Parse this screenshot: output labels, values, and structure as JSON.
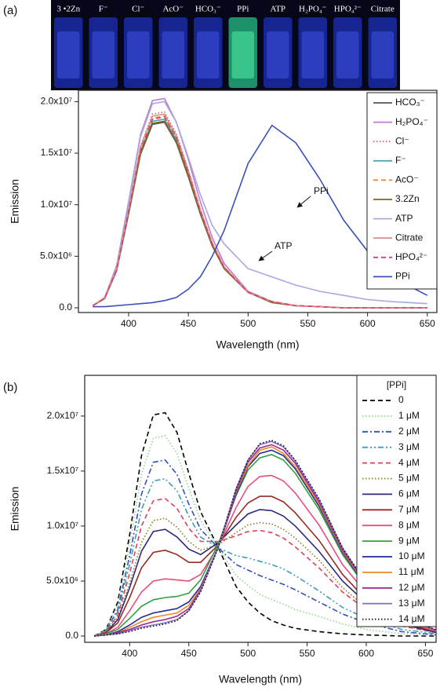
{
  "photo": {
    "labels": [
      "3 •2Zn",
      "F⁻",
      "Cl⁻",
      "AcO⁻",
      "HCO₃⁻",
      "PPi",
      "ATP",
      "H₂PO₄⁻",
      "HPO₄²⁻",
      "Citrate"
    ]
  },
  "chart_data": [
    {
      "type": "line",
      "panel": "(a)",
      "x_label": "Wavelength (nm)",
      "y_label": "Emission",
      "xlim": [
        358,
        658
      ],
      "ylim": [
        -460000,
        21100000
      ],
      "xticks": [
        400,
        450,
        500,
        550,
        600,
        650
      ],
      "yticks": [
        {
          "value": 0,
          "label": "0.0"
        },
        {
          "value": 5000000,
          "label": "5.0x10⁶"
        },
        {
          "value": 10000000,
          "label": "1.0x10⁷"
        },
        {
          "value": 15000000,
          "label": "1.5x10⁷"
        },
        {
          "value": 20000000,
          "label": "2.0x10⁷"
        }
      ],
      "legend": "upper right",
      "annotations": [
        "PPi",
        "ATP"
      ],
      "x": [
        370,
        380,
        390,
        400,
        410,
        420,
        430,
        440,
        450,
        460,
        470,
        480,
        500,
        520,
        540,
        560,
        580,
        600,
        620,
        650
      ],
      "series": [
        {
          "name": "HCO₃⁻",
          "color": "#555555",
          "style": "solid",
          "values": [
            200000.0,
            900000.0,
            3600000.0,
            9100000.0,
            14900000.0,
            17800000.0,
            18000000.0,
            16000000.0,
            12700000.0,
            9100000.0,
            6000000.0,
            3800000.0,
            1500000.0,
            500000.0,
            200000.0,
            100000.0,
            0,
            0,
            0,
            0
          ]
        },
        {
          "name": "H₂PO₄⁻",
          "color": "#c07ad0",
          "style": "solid",
          "values": [
            200000.0,
            1000000.0,
            4100000.0,
            10300000.0,
            16800000.0,
            20100000.0,
            20300000.0,
            18000000.0,
            14400000.0,
            10300000.0,
            6800000.0,
            4300000.0,
            1600000.0,
            600000.0,
            200000.0,
            100000.0,
            0,
            0,
            0,
            0
          ]
        },
        {
          "name": "Cl⁻",
          "color": "#b07060",
          "style": "dotted",
          "values": [
            200000.0,
            1000000.0,
            3800000.0,
            9600000.0,
            15700000.0,
            18800000.0,
            19000000.0,
            16900000.0,
            13400000.0,
            9600000.0,
            6300000.0,
            4000000.0,
            1500000.0,
            600000.0,
            200000.0,
            100000.0,
            0,
            0,
            0,
            0
          ]
        },
        {
          "name": "F⁻",
          "color": "#4fa8b8",
          "style": "solid",
          "values": [
            200000.0,
            900000.0,
            3700000.0,
            9300000.0,
            15200000.0,
            18100000.0,
            18300000.0,
            16300000.0,
            13000000.0,
            9300000.0,
            6100000.0,
            3900000.0,
            1500000.0,
            600000.0,
            200000.0,
            100000.0,
            0,
            0,
            0,
            0
          ]
        },
        {
          "name": "AcO⁻",
          "color": "#f08030",
          "style": "dashed",
          "values": [
            200000.0,
            900000.0,
            3800000.0,
            9400000.0,
            15400000.0,
            18400000.0,
            18600000.0,
            16500000.0,
            13200000.0,
            9400000.0,
            6200000.0,
            3900000.0,
            1500000.0,
            600000.0,
            200000.0,
            100000.0,
            0,
            0,
            0,
            0
          ]
        },
        {
          "name": "3.2Zn",
          "color": "#7a6a20",
          "style": "solid",
          "values": [
            200000.0,
            900000.0,
            3700000.0,
            9200000.0,
            15000000.0,
            17900000.0,
            18100000.0,
            16100000.0,
            12800000.0,
            9200000.0,
            6000000.0,
            3800000.0,
            1500000.0,
            500000.0,
            200000.0,
            100000.0,
            0,
            0,
            0,
            0
          ]
        },
        {
          "name": "ATP",
          "color": "#a8a8e0",
          "style": "solid",
          "values": [
            200000.0,
            1000000.0,
            4000000.0,
            10100000.0,
            16600000.0,
            19800000.0,
            20000000.0,
            18000000.0,
            14600000.0,
            11000000.0,
            8000000.0,
            6200000.0,
            3800000.0,
            3000000.0,
            2200000.0,
            1600000.0,
            1200000.0,
            800000.0,
            600000.0,
            400000.0
          ]
        },
        {
          "name": "Citrate",
          "color": "#d89090",
          "style": "solid",
          "values": [
            200000.0,
            1000000.0,
            3800000.0,
            9500000.0,
            15600000.0,
            18600000.0,
            18800000.0,
            16700000.0,
            13300000.0,
            9500000.0,
            6300000.0,
            4000000.0,
            1500000.0,
            600000.0,
            200000.0,
            100000.0,
            0,
            0,
            0,
            0
          ]
        },
        {
          "name": "HPO₄²⁻",
          "color": "#e04070",
          "style": "dashed",
          "values": [
            200000.0,
            900000.0,
            3700000.0,
            9400000.0,
            15300000.0,
            18300000.0,
            18500000.0,
            16500000.0,
            13100000.0,
            9400000.0,
            6200000.0,
            3900000.0,
            1500000.0,
            600000.0,
            200000.0,
            100000.0,
            0,
            0,
            0,
            0
          ]
        },
        {
          "name": "PPi",
          "color": "#3a50b8",
          "style": "solid",
          "values": [
            100000.0,
            100000.0,
            200000.0,
            300000.0,
            400000.0,
            500000.0,
            700000.0,
            1000000.0,
            1800000.0,
            3000000.0,
            5000000.0,
            7500000.0,
            14000000.0,
            17700000.0,
            16000000.0,
            12500000.0,
            8500000.0,
            5500000.0,
            3000000.0,
            1200000.0
          ]
        }
      ]
    },
    {
      "type": "line",
      "panel": "(b)",
      "x_label": "Wavelength (nm)",
      "y_label": "Emission",
      "xlim": [
        362,
        659
      ],
      "ylim": [
        -570000,
        23700000
      ],
      "xticks": [
        400,
        450,
        500,
        550,
        600,
        650
      ],
      "yticks": [
        {
          "value": 0,
          "label": "0.0"
        },
        {
          "value": 5000000,
          "label": "5.0x10⁶"
        },
        {
          "value": 10000000,
          "label": "1.0x10⁷"
        },
        {
          "value": 15000000,
          "label": "1.5x10⁷"
        },
        {
          "value": 20000000,
          "label": "2.0x10⁷"
        }
      ],
      "legend": "upper right",
      "legend_title": "[PPi]",
      "x": [
        370,
        380,
        390,
        400,
        410,
        420,
        430,
        440,
        450,
        460,
        475,
        490,
        500,
        510,
        520,
        530,
        540,
        560,
        580,
        600,
        630,
        660
      ],
      "series": [
        {
          "name": "0",
          "color": "#000000",
          "style": "dashed",
          "values": [
            0,
            600000.0,
            3100000.0,
            9200000.0,
            16400000.0,
            20100000.0,
            20300000.0,
            18500000.0,
            14800000.0,
            11300000.0,
            8000000.0,
            4500000.0,
            3100000.0,
            2100000.0,
            1400000.0,
            1000000.0,
            700000.0,
            400000.0,
            200000.0,
            100000.0,
            0,
            0
          ]
        },
        {
          "name": "1 μM",
          "color": "#8ed88e",
          "style": "dotted",
          "values": [
            0,
            600000.0,
            2800000.0,
            8300000.0,
            14700000.0,
            18000000.0,
            18200000.0,
            16600000.0,
            13400000.0,
            10500000.0,
            8000000.0,
            5500000.0,
            4600000.0,
            3800000.0,
            3300000.0,
            2900000.0,
            2400000.0,
            1800000.0,
            1100000.0,
            600000.0,
            200000.0,
            100000.0
          ]
        },
        {
          "name": "2 μM",
          "color": "#3050c0",
          "style": "dashdot",
          "values": [
            0,
            500000.0,
            2400000.0,
            7300000.0,
            12900000.0,
            15800000.0,
            16000000.0,
            14700000.0,
            12000000.0,
            9700000.0,
            8000000.0,
            6500000.0,
            6000000.0,
            5500000.0,
            5100000.0,
            4700000.0,
            4200000.0,
            3100000.0,
            2000000.0,
            1200000.0,
            400000.0,
            100000.0
          ]
        },
        {
          "name": "3 μM",
          "color": "#3aa0b0",
          "style": "dashdotdot",
          "values": [
            0,
            500000.0,
            2200000.0,
            6500000.0,
            11500000.0,
            14100000.0,
            14300000.0,
            13200000.0,
            10900000.0,
            9000000.0,
            8000000.0,
            7300000.0,
            7100000.0,
            6800000.0,
            6500000.0,
            6100000.0,
            5500000.0,
            4100000.0,
            2600000.0,
            1600000.0,
            600000.0,
            200000.0
          ]
        },
        {
          "name": "4 μM",
          "color": "#e0405a",
          "style": "dashed",
          "values": [
            0,
            400000.0,
            1900000.0,
            5700000.0,
            10000000.0,
            12300000.0,
            12500000.0,
            11600000.0,
            9800000.0,
            8600000.0,
            8600000.0,
            9100000.0,
            9500000.0,
            9600000.0,
            9400000.0,
            8900000.0,
            8100000.0,
            6200000.0,
            4000000.0,
            2400000.0,
            900000.0,
            300000.0
          ]
        },
        {
          "name": "5 μM",
          "color": "#8a7a20",
          "style": "dotted",
          "values": [
            0,
            400000.0,
            1700000.0,
            4800000.0,
            8500000.0,
            10500000.0,
            10700000.0,
            9900000.0,
            8600000.0,
            7800000.0,
            8300000.0,
            9400000.0,
            10100000.0,
            10300000.0,
            10200000.0,
            9700000.0,
            8900000.0,
            6900000.0,
            4400000.0,
            2600000.0,
            1000000.0,
            300000.0
          ]
        },
        {
          "name": "6 μM",
          "color": "#2a2a80",
          "style": "solid",
          "values": [
            0,
            300000.0,
            1500000.0,
            4400000.0,
            7700000.0,
            9500000.0,
            9700000.0,
            9000000.0,
            7900000.0,
            7400000.0,
            8500000.0,
            10100000.0,
            11100000.0,
            11500000.0,
            11400000.0,
            10900000.0,
            10000000.0,
            7700000.0,
            5000000.0,
            3000000.0,
            1100000.0,
            300000.0
          ]
        },
        {
          "name": "7 μM",
          "color": "#9a2a20",
          "style": "solid",
          "values": [
            0,
            300000.0,
            1200000.0,
            3500000.0,
            6200000.0,
            7600000.0,
            7800000.0,
            7400000.0,
            6700000.0,
            6700000.0,
            8300000.0,
            10800000.0,
            12100000.0,
            12700000.0,
            12700000.0,
            12200000.0,
            11200000.0,
            8700000.0,
            5600000.0,
            3300000.0,
            1200000.0,
            400000.0
          ]
        },
        {
          "name": "8 μM",
          "color": "#e8507a",
          "style": "solid",
          "values": [
            0,
            200000.0,
            800000.0,
            2300000.0,
            4000000.0,
            5000000.0,
            5200000.0,
            5100000.0,
            5000000.0,
            5600000.0,
            8200000.0,
            11700000.0,
            13600000.0,
            14500000.0,
            14600000.0,
            14100000.0,
            13000000.0,
            10100000.0,
            6500000.0,
            3900000.0,
            1400000.0,
            400000.0
          ]
        },
        {
          "name": "9 μM",
          "color": "#30a040",
          "style": "solid",
          "values": [
            0,
            200000.0,
            600000.0,
            1600000.0,
            2700000.0,
            3300000.0,
            3500000.0,
            3600000.0,
            3900000.0,
            5100000.0,
            8400000.0,
            12800000.0,
            15100000.0,
            16200000.0,
            16500000.0,
            16000000.0,
            14800000.0,
            11500000.0,
            7400000.0,
            4400000.0,
            1600000.0,
            500000.0
          ]
        },
        {
          "name": "10 μM",
          "color": "#202a9a",
          "style": "solid",
          "values": [
            0,
            100000.0,
            400000.0,
            1000000.0,
            1700000.0,
            2100000.0,
            2300000.0,
            2500000.0,
            3100000.0,
            4500000.0,
            8100000.0,
            12900000.0,
            15400000.0,
            16600000.0,
            16900000.0,
            16400000.0,
            15200000.0,
            11800000.0,
            7600000.0,
            4500000.0,
            1700000.0,
            500000.0
          ]
        },
        {
          "name": "11 μM",
          "color": "#f08a20",
          "style": "solid",
          "values": [
            0,
            100000.0,
            300000.0,
            800000.0,
            1300000.0,
            1700000.0,
            1900000.0,
            2100000.0,
            2800000.0,
            4300000.0,
            8100000.0,
            13100000.0,
            15500000.0,
            16900000.0,
            17200000.0,
            16600000.0,
            15400000.0,
            12000000.0,
            7700000.0,
            4600000.0,
            1700000.0,
            500000.0
          ]
        },
        {
          "name": "12 μM",
          "color": "#9a2a8a",
          "style": "solid",
          "values": [
            0,
            100000.0,
            300000.0,
            600000.0,
            1000000.0,
            1300000.0,
            1500000.0,
            1800000.0,
            2500000.0,
            4200000.0,
            8100000.0,
            13200000.0,
            15800000.0,
            17100000.0,
            17400000.0,
            16900000.0,
            15700000.0,
            12200000.0,
            7800000.0,
            4700000.0,
            1700000.0,
            500000.0
          ]
        },
        {
          "name": "13 μM",
          "color": "#8a70d0",
          "style": "solid",
          "values": [
            0,
            100000.0,
            200000.0,
            500000.0,
            800000.0,
            1000000.0,
            1200000.0,
            1500000.0,
            2300000.0,
            4100000.0,
            8100000.0,
            13400000.0,
            16000000.0,
            17400000.0,
            17700000.0,
            17200000.0,
            15900000.0,
            12400000.0,
            8000000.0,
            4800000.0,
            1800000.0,
            500000.0
          ]
        },
        {
          "name": "14 μM",
          "color": "#111111",
          "style": "dotted",
          "values": [
            0,
            100000.0,
            200000.0,
            400000.0,
            700000.0,
            900000.0,
            1100000.0,
            1400000.0,
            2300000.0,
            4000000.0,
            8100000.0,
            13400000.0,
            16000000.0,
            17500000.0,
            17800000.0,
            17300000.0,
            16000000.0,
            12500000.0,
            8000000.0,
            4800000.0,
            1800000.0,
            500000.0
          ]
        }
      ]
    }
  ]
}
